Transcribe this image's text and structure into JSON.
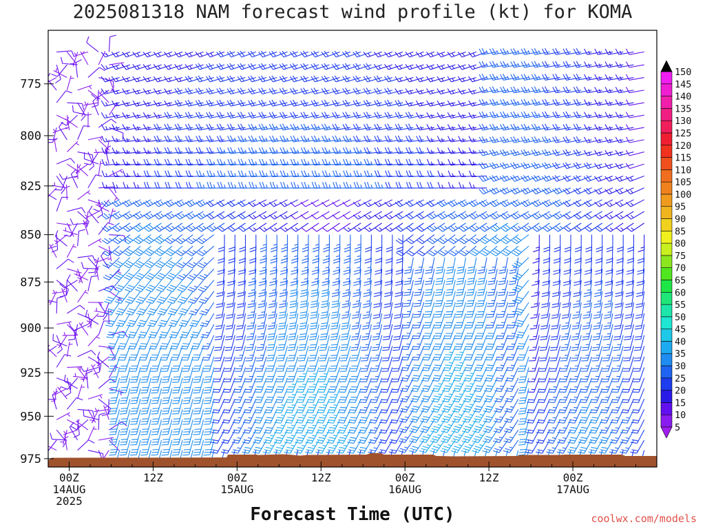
{
  "page": {
    "title": "2025081318 NAM forecast wind profile (kt) for KOMA",
    "xlabel": "Forecast Time (UTC)",
    "credit": "coolwx.com/models"
  },
  "chart_data": {
    "type": "wind-barb-profile",
    "title": "2025081318 NAM forecast wind profile (kt) for KOMA",
    "xlabel": "Forecast Time (UTC)",
    "ylabel": "",
    "x_range_hours": [
      -3,
      84
    ],
    "x_ticks": [
      {
        "hour": 0,
        "labels": [
          "00Z",
          "14AUG",
          "2025"
        ]
      },
      {
        "hour": 12,
        "labels": [
          "12Z"
        ]
      },
      {
        "hour": 24,
        "labels": [
          "00Z",
          "15AUG"
        ]
      },
      {
        "hour": 36,
        "labels": [
          "12Z"
        ]
      },
      {
        "hour": 48,
        "labels": [
          "00Z",
          "16AUG"
        ]
      },
      {
        "hour": 60,
        "labels": [
          "12Z"
        ]
      },
      {
        "hour": 72,
        "labels": [
          "00Z",
          "17AUG"
        ]
      }
    ],
    "y_range_hpa": [
      980,
      750
    ],
    "y_ticks": [
      775,
      800,
      825,
      850,
      875,
      900,
      925,
      950,
      975
    ],
    "colorbar": {
      "levels": [
        5,
        10,
        15,
        20,
        25,
        30,
        35,
        40,
        45,
        50,
        55,
        60,
        65,
        70,
        75,
        80,
        85,
        90,
        95,
        100,
        105,
        110,
        115,
        120,
        125,
        130,
        135,
        140,
        145,
        150
      ],
      "colors": [
        "#8a1cf0",
        "#6210f0",
        "#2a1ae8",
        "#1e3cf0",
        "#1e64f0",
        "#1e8cf0",
        "#1eaaf0",
        "#1ec8e6",
        "#1ee6d2",
        "#1ee6aa",
        "#1ee678",
        "#1ee646",
        "#50e61e",
        "#8ce61e",
        "#c8f01e",
        "#f0f01e",
        "#f0d21e",
        "#f0b41e",
        "#f09b1e",
        "#f0821e",
        "#f06e1e",
        "#f0501e",
        "#f0321e",
        "#f01e32",
        "#f01e5a",
        "#f01e82",
        "#f01eaa",
        "#f01ed2",
        "#f01ef0"
      ],
      "under_color": "#a01ef0",
      "over_color": "#000000"
    },
    "terrain": {
      "color": "#a0522d",
      "surface_pressure_hpa": [
        [
          -3,
          976
        ],
        [
          -2.5,
          974.5
        ],
        [
          22.5,
          974.3
        ],
        [
          22.7,
          972.6
        ],
        [
          26.5,
          972.6
        ],
        [
          26.6,
          972.4
        ],
        [
          27,
          972.8
        ],
        [
          30.5,
          972.4
        ],
        [
          31.5,
          972.6
        ],
        [
          33,
          973.2
        ],
        [
          34,
          972.8
        ],
        [
          42.5,
          972.6
        ],
        [
          43,
          971.8
        ],
        [
          44.5,
          971.6
        ],
        [
          45,
          972.6
        ],
        [
          52,
          972.6
        ],
        [
          52.5,
          973.4
        ],
        [
          55,
          973.6
        ],
        [
          64,
          973.4
        ],
        [
          64.5,
          972.8
        ],
        [
          70,
          972.8
        ],
        [
          71,
          972.6
        ],
        [
          79,
          972.6
        ],
        [
          79.5,
          973.4
        ],
        [
          84,
          973.4
        ]
      ]
    },
    "wind_regimes": [
      {
        "hours": [
          -3,
          6
        ],
        "levels_hpa": [
          760,
          970
        ],
        "speed_kt": [
          6,
          14
        ],
        "note": "light and variable"
      },
      {
        "hours": [
          6,
          60
        ],
        "levels_hpa": [
          760,
          830
        ],
        "direction_deg": [
          250,
          270
        ],
        "speed_kt": [
          15,
          30
        ]
      },
      {
        "hours": [
          22,
          48
        ],
        "levels_hpa": [
          850,
          965
        ],
        "direction_deg": [
          180,
          210
        ],
        "speed_kt": [
          20,
          40
        ]
      },
      {
        "hours": [
          48,
          64
        ],
        "levels_hpa": [
          860,
          965
        ],
        "direction_deg": [
          190,
          215
        ],
        "speed_kt": [
          25,
          40
        ]
      },
      {
        "hours": [
          66,
          84
        ],
        "levels_hpa": [
          850,
          965
        ],
        "direction_deg": [
          180,
          210
        ],
        "speed_kt": [
          18,
          32
        ]
      }
    ]
  }
}
